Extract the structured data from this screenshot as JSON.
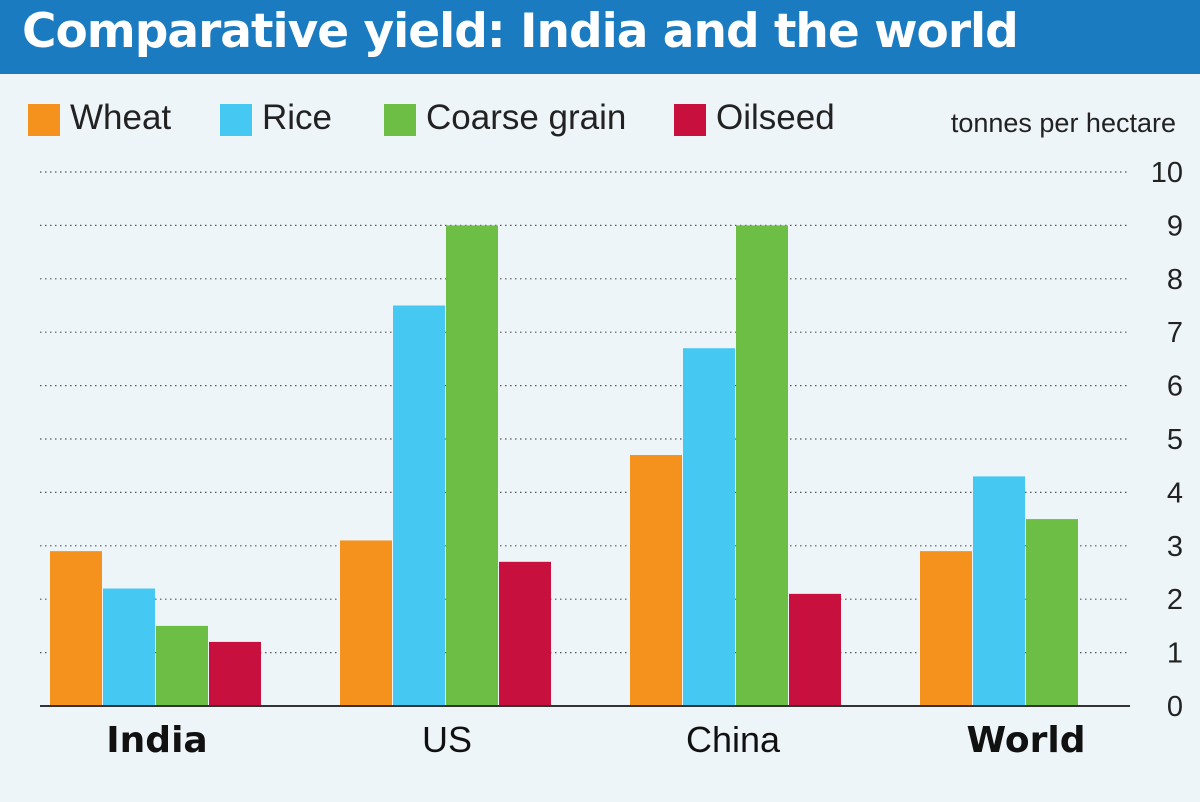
{
  "header": {
    "title": "Comparative yield: India and the world"
  },
  "unit_label": "tonnes per hectare",
  "colors": {
    "header_bg": "#1b7bc1",
    "wheat": "#f5921e",
    "rice": "#45c8f2",
    "coarse_grain": "#6cbe45",
    "oilseed": "#c8103e"
  },
  "chart_data": {
    "type": "bar",
    "title": "Comparative yield: India and the world",
    "ylabel": "tonnes per hectare",
    "xlabel": "",
    "categories": [
      "India",
      "US",
      "China",
      "World"
    ],
    "bold_categories": [
      "India",
      "World"
    ],
    "ylim": [
      0,
      10
    ],
    "yticks": [
      0,
      1,
      2,
      3,
      4,
      5,
      6,
      7,
      8,
      9,
      10
    ],
    "grid": "dotted horizontal",
    "legend_position": "top-left",
    "series": [
      {
        "name": "Wheat",
        "color": "#f5921e",
        "values": [
          2.9,
          3.1,
          4.7,
          2.9
        ]
      },
      {
        "name": "Rice",
        "color": "#45c8f2",
        "values": [
          2.2,
          7.5,
          6.7,
          4.3
        ]
      },
      {
        "name": "Coarse grain",
        "color": "#6cbe45",
        "values": [
          1.5,
          9.0,
          9.0,
          3.5
        ]
      },
      {
        "name": "Oilseed",
        "color": "#c8103e",
        "values": [
          1.2,
          2.7,
          2.1,
          null
        ]
      }
    ]
  }
}
